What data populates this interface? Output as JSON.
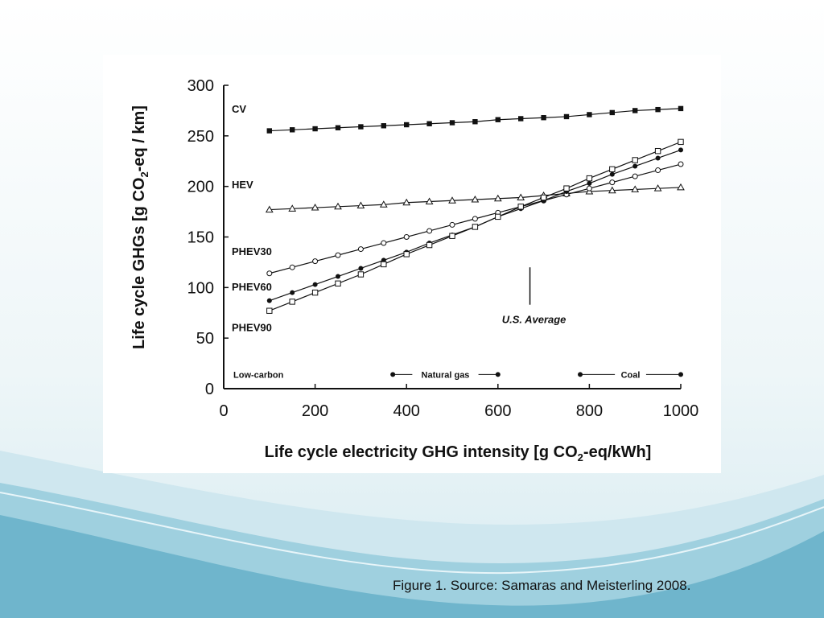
{
  "slide": {
    "caption": "Figure 1. Source: Samaras and Meisterling 2008."
  },
  "colors": {
    "ink": "#111111",
    "wave_dark": "#5fa9c4",
    "wave_light": "#bfe0ea"
  },
  "chart_data": {
    "type": "line",
    "xlabel_pre": "Life cycle electricity GHG intensity [g CO",
    "xlabel_sub": "2",
    "xlabel_post": "-eq/kWh]",
    "ylabel_pre": "Life cycle GHGs [g CO",
    "ylabel_sub": "2",
    "ylabel_post": "-eq / km]",
    "xlim": [
      0,
      1000
    ],
    "ylim": [
      0,
      300
    ],
    "xticks": [
      0,
      200,
      400,
      600,
      800,
      1000
    ],
    "yticks": [
      0,
      50,
      100,
      150,
      200,
      250,
      300
    ],
    "grid": false,
    "x": [
      100,
      150,
      200,
      250,
      300,
      350,
      400,
      450,
      500,
      550,
      600,
      650,
      700,
      750,
      800,
      850,
      900,
      950,
      1000
    ],
    "series": [
      {
        "name": "CV",
        "marker": "square-filled",
        "values": [
          255,
          256,
          257,
          258,
          259,
          260,
          261,
          262,
          263,
          264,
          266,
          267,
          268,
          269,
          271,
          273,
          275,
          276,
          277
        ]
      },
      {
        "name": "HEV",
        "marker": "triangle-open",
        "values": [
          177,
          178,
          179,
          180,
          181,
          182,
          184,
          185,
          186,
          187,
          188,
          189,
          191,
          193,
          195,
          196,
          197,
          198,
          199
        ]
      },
      {
        "name": "PHEV30",
        "marker": "circle-open",
        "values": [
          114,
          120,
          126,
          132,
          138,
          144,
          150,
          156,
          162,
          168,
          174,
          180,
          186,
          192,
          198,
          204,
          210,
          216,
          222
        ]
      },
      {
        "name": "PHEV60",
        "marker": "circle-filled",
        "values": [
          87,
          95,
          103,
          111,
          119,
          127,
          135,
          144,
          152,
          160,
          170,
          178,
          186,
          195,
          203,
          212,
          220,
          228,
          236
        ]
      },
      {
        "name": "PHEV90",
        "marker": "square-open",
        "values": [
          77,
          86,
          95,
          104,
          113,
          123,
          133,
          142,
          151,
          160,
          170,
          180,
          189,
          198,
          208,
          217,
          226,
          235,
          244
        ]
      }
    ],
    "annotations": {
      "us_average": {
        "label": "U.S. Average",
        "x": 670,
        "y_from": 83,
        "y_to": 120
      },
      "ranges": [
        {
          "label": "Low-carbon",
          "x_from": 0,
          "x_to": 0,
          "y": 14
        },
        {
          "label": "Natural gas",
          "x_from": 370,
          "x_to": 600,
          "y": 14
        },
        {
          "label": "Coal",
          "x_from": 780,
          "x_to": 1000,
          "y": 14
        }
      ]
    }
  }
}
